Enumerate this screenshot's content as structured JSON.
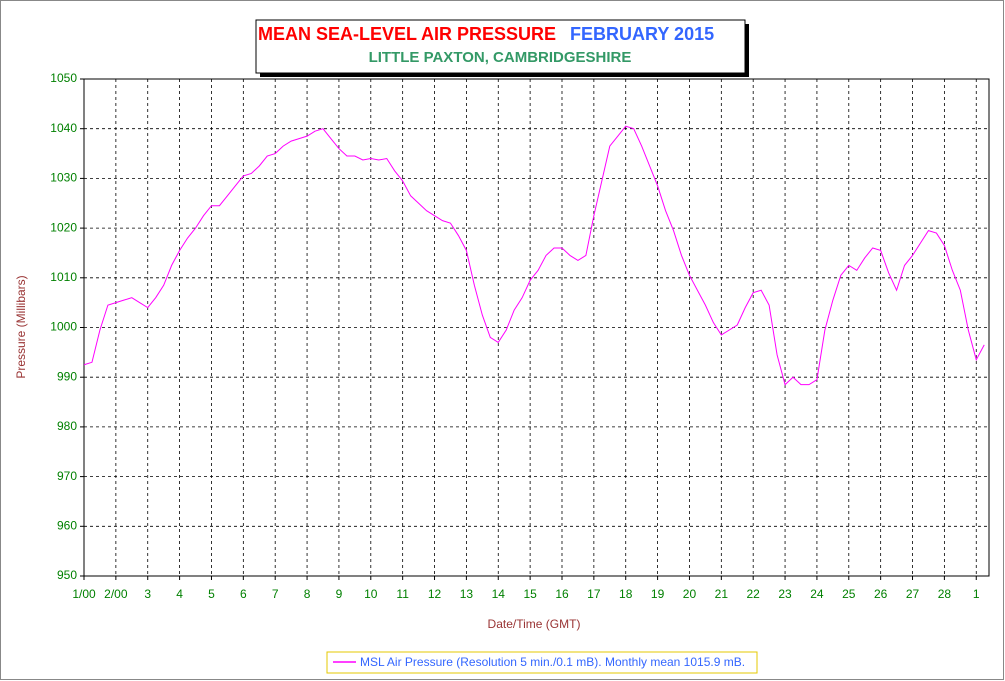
{
  "chart_data": {
    "type": "line",
    "title": "MEAN SEA-LEVEL AIR PRESSURE",
    "title_date": "FEBRUARY 2015",
    "subtitle": "LITTLE PAXTON, CAMBRIDGESHIRE",
    "x_label": "Date/Time (GMT)",
    "y_label": "Pressure (Millibars)",
    "grid": true,
    "x": [
      0,
      0.25,
      0.5,
      0.75,
      1,
      1.25,
      1.5,
      1.75,
      2,
      2.25,
      2.5,
      2.75,
      3,
      3.25,
      3.5,
      3.75,
      4,
      4.25,
      4.5,
      4.75,
      5,
      5.25,
      5.5,
      5.75,
      6,
      6.25,
      6.5,
      6.75,
      7,
      7.25,
      7.5,
      7.75,
      8,
      8.25,
      8.5,
      8.75,
      9,
      9.25,
      9.5,
      9.75,
      10,
      10.25,
      10.5,
      10.75,
      11,
      11.25,
      11.5,
      11.75,
      12,
      12.25,
      12.5,
      12.75,
      13,
      13.25,
      13.5,
      13.75,
      14,
      14.25,
      14.5,
      14.75,
      15,
      15.25,
      15.5,
      15.75,
      16,
      16.25,
      16.5,
      16.75,
      17,
      17.25,
      17.5,
      17.75,
      18,
      18.25,
      18.5,
      18.75,
      19,
      19.25,
      19.5,
      19.75,
      20,
      20.25,
      20.5,
      20.75,
      21,
      21.25,
      21.5,
      21.75,
      22,
      22.25,
      22.5,
      22.75,
      23,
      23.25,
      23.5,
      23.75,
      24,
      24.25,
      24.5,
      24.75,
      25,
      25.25,
      25.5,
      25.75,
      26,
      26.25,
      26.5,
      26.75,
      27,
      27.25,
      27.5,
      27.75,
      28,
      28.25
    ],
    "series": [
      {
        "name": "MSL Air Pressure (Resolution 5 min./0.1 mB). Monthly mean 1015.9 mB.",
        "color": "#ff00ff",
        "values": [
          992.5,
          993,
          999.5,
          1004.5,
          1005,
          1005.5,
          1006,
          1005,
          1004,
          1006,
          1008.5,
          1012.5,
          1015.5,
          1018,
          1020,
          1022.5,
          1024.5,
          1024.5,
          1026.5,
          1028.5,
          1030.5,
          1031,
          1032.5,
          1034.5,
          1035,
          1036.5,
          1037.5,
          1038,
          1038.5,
          1039.5,
          1040,
          1038,
          1036,
          1034.5,
          1034.5,
          1033.7,
          1034,
          1033.7,
          1034,
          1031.5,
          1029.5,
          1026.5,
          1025,
          1023.5,
          1022.5,
          1021.5,
          1021,
          1018.5,
          1015.5,
          1008.5,
          1002.5,
          998,
          997,
          999.5,
          1003.5,
          1006,
          1009.5,
          1011.5,
          1014.5,
          1016,
          1016,
          1014.5,
          1013.5,
          1014.5,
          1022.5,
          1029.5,
          1036.5,
          1038.5,
          1040.5,
          1040,
          1036.5,
          1032.5,
          1028.5,
          1023.5,
          1019.5,
          1014.5,
          1010.5,
          1007.5,
          1004.5,
          1001,
          998.5,
          999.5,
          1000.5,
          1004,
          1007,
          1007.5,
          1004.5,
          994.5,
          988.5,
          990,
          988.5,
          988.5,
          989.5,
          999.5,
          1005.5,
          1010.5,
          1012.5,
          1011.5,
          1014,
          1016,
          1015.5,
          1011,
          1007.5,
          1012.5,
          1014.5,
          1017,
          1019.5,
          1019,
          1016.5,
          1011.5,
          1007.5,
          999.5,
          993.5,
          996.5
        ]
      }
    ],
    "xlim": [
      0,
      28.4
    ],
    "ylim": [
      950,
      1050
    ],
    "yticks": [
      950,
      960,
      970,
      980,
      990,
      1000,
      1010,
      1020,
      1030,
      1040,
      1050
    ],
    "xticks": [
      {
        "value": 0,
        "label": "1/00"
      },
      {
        "value": 1,
        "label": "2/00"
      },
      {
        "value": 2,
        "label": "3"
      },
      {
        "value": 3,
        "label": "4"
      },
      {
        "value": 4,
        "label": "5"
      },
      {
        "value": 5,
        "label": "6"
      },
      {
        "value": 6,
        "label": "7"
      },
      {
        "value": 7,
        "label": "8"
      },
      {
        "value": 8,
        "label": "9"
      },
      {
        "value": 9,
        "label": "10"
      },
      {
        "value": 10,
        "label": "11"
      },
      {
        "value": 11,
        "label": "12"
      },
      {
        "value": 12,
        "label": "13"
      },
      {
        "value": 13,
        "label": "14"
      },
      {
        "value": 14,
        "label": "15"
      },
      {
        "value": 15,
        "label": "16"
      },
      {
        "value": 16,
        "label": "17"
      },
      {
        "value": 17,
        "label": "18"
      },
      {
        "value": 18,
        "label": "19"
      },
      {
        "value": 19,
        "label": "20"
      },
      {
        "value": 20,
        "label": "21"
      },
      {
        "value": 21,
        "label": "22"
      },
      {
        "value": 22,
        "label": "23"
      },
      {
        "value": 23,
        "label": "24"
      },
      {
        "value": 24,
        "label": "25"
      },
      {
        "value": 25,
        "label": "26"
      },
      {
        "value": 26,
        "label": "27"
      },
      {
        "value": 27,
        "label": "28"
      },
      {
        "value": 28,
        "label": "1"
      }
    ]
  }
}
